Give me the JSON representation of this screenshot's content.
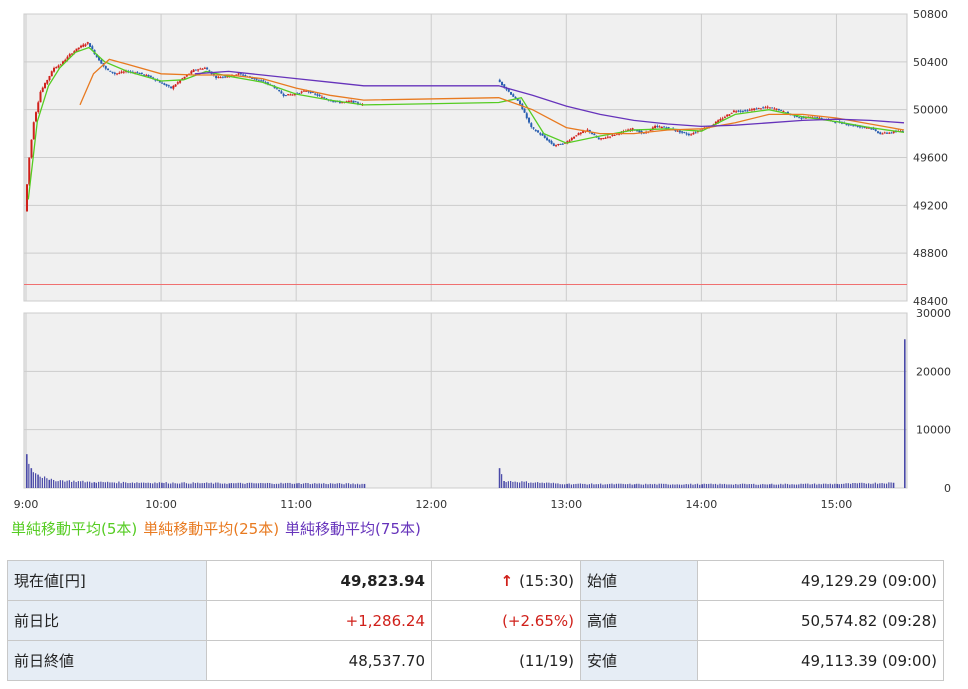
{
  "chart_data": [
    {
      "type": "candlestick",
      "panel": "price",
      "x_ticks": [
        "9:00",
        "10:00",
        "11:00",
        "12:00",
        "13:00",
        "14:00",
        "15:00"
      ],
      "y_ticks": [
        "50800",
        "50400",
        "50000",
        "49600",
        "49200",
        "48800",
        "48400"
      ],
      "ylim": [
        48400,
        50800
      ],
      "xlim": [
        "9:00",
        "15:30"
      ],
      "reference_line": 48537.7,
      "grid": true,
      "price_path": [
        [
          "9:00",
          49150
        ],
        [
          "9:02",
          49600
        ],
        [
          "9:04",
          49900
        ],
        [
          "9:07",
          50150
        ],
        [
          "9:10",
          50250
        ],
        [
          "9:13",
          50350
        ],
        [
          "9:16",
          50380
        ],
        [
          "9:20",
          50460
        ],
        [
          "9:24",
          50520
        ],
        [
          "9:28",
          50560
        ],
        [
          "9:32",
          50440
        ],
        [
          "9:36",
          50340
        ],
        [
          "9:40",
          50300
        ],
        [
          "9:45",
          50320
        ],
        [
          "9:50",
          50310
        ],
        [
          "9:55",
          50280
        ],
        [
          "10:00",
          50230
        ],
        [
          "10:05",
          50180
        ],
        [
          "10:10",
          50260
        ],
        [
          "10:15",
          50330
        ],
        [
          "10:20",
          50350
        ],
        [
          "10:25",
          50270
        ],
        [
          "10:30",
          50280
        ],
        [
          "10:35",
          50300
        ],
        [
          "10:40",
          50270
        ],
        [
          "10:45",
          50240
        ],
        [
          "10:50",
          50200
        ],
        [
          "10:55",
          50120
        ],
        [
          "11:00",
          50130
        ],
        [
          "11:05",
          50160
        ],
        [
          "11:10",
          50120
        ],
        [
          "11:15",
          50080
        ],
        [
          "11:20",
          50060
        ],
        [
          "11:25",
          50070
        ],
        [
          "11:30",
          50040
        ],
        [
          "12:30",
          50250
        ],
        [
          "12:35",
          50150
        ],
        [
          "12:40",
          50050
        ],
        [
          "12:45",
          49850
        ],
        [
          "12:50",
          49780
        ],
        [
          "12:55",
          49700
        ],
        [
          "13:00",
          49720
        ],
        [
          "13:05",
          49790
        ],
        [
          "13:10",
          49830
        ],
        [
          "13:15",
          49750
        ],
        [
          "13:20",
          49780
        ],
        [
          "13:25",
          49810
        ],
        [
          "13:30",
          49840
        ],
        [
          "13:35",
          49800
        ],
        [
          "13:40",
          49860
        ],
        [
          "13:45",
          49850
        ],
        [
          "13:50",
          49820
        ],
        [
          "13:55",
          49790
        ],
        [
          "14:00",
          49830
        ],
        [
          "14:05",
          49870
        ],
        [
          "14:10",
          49930
        ],
        [
          "14:15",
          49990
        ],
        [
          "14:20",
          49990
        ],
        [
          "14:25",
          50010
        ],
        [
          "14:30",
          50020
        ],
        [
          "14:35",
          50000
        ],
        [
          "14:40",
          49960
        ],
        [
          "14:45",
          49930
        ],
        [
          "14:50",
          49940
        ],
        [
          "14:55",
          49920
        ],
        [
          "15:00",
          49900
        ],
        [
          "15:05",
          49880
        ],
        [
          "15:10",
          49860
        ],
        [
          "15:15",
          49850
        ],
        [
          "15:20",
          49800
        ],
        [
          "15:25",
          49810
        ],
        [
          "15:30",
          49824
        ]
      ],
      "series": [
        {
          "name": "単純移動平均(5本)",
          "color": "#55cc22",
          "values": [
            [
              "9:01",
              49250
            ],
            [
              "9:05",
              49900
            ],
            [
              "9:10",
              50200
            ],
            [
              "9:15",
              50350
            ],
            [
              "9:22",
              50480
            ],
            [
              "9:28",
              50520
            ],
            [
              "9:35",
              50400
            ],
            [
              "9:45",
              50320
            ],
            [
              "10:00",
              50240
            ],
            [
              "10:10",
              50250
            ],
            [
              "10:20",
              50320
            ],
            [
              "10:30",
              50280
            ],
            [
              "10:45",
              50230
            ],
            [
              "11:00",
              50130
            ],
            [
              "11:15",
              50080
            ],
            [
              "11:30",
              50040
            ],
            [
              "12:30",
              50060
            ],
            [
              "12:40",
              50100
            ],
            [
              "12:50",
              49800
            ],
            [
              "13:00",
              49720
            ],
            [
              "13:15",
              49780
            ],
            [
              "13:30",
              49830
            ],
            [
              "13:45",
              49840
            ],
            [
              "14:00",
              49820
            ],
            [
              "14:15",
              49960
            ],
            [
              "14:30",
              50000
            ],
            [
              "14:45",
              49940
            ],
            [
              "15:00",
              49900
            ],
            [
              "15:15",
              49850
            ],
            [
              "15:30",
              49810
            ]
          ]
        },
        {
          "name": "単純移動平均(25本)",
          "color": "#e87a20",
          "values": [
            [
              "9:24",
              50040
            ],
            [
              "9:30",
              50300
            ],
            [
              "9:37",
              50420
            ],
            [
              "9:45",
              50380
            ],
            [
              "10:00",
              50300
            ],
            [
              "10:15",
              50290
            ],
            [
              "10:30",
              50290
            ],
            [
              "10:45",
              50260
            ],
            [
              "11:00",
              50180
            ],
            [
              "11:15",
              50120
            ],
            [
              "11:30",
              50080
            ],
            [
              "12:30",
              50100
            ],
            [
              "12:45",
              50000
            ],
            [
              "13:00",
              49850
            ],
            [
              "13:15",
              49800
            ],
            [
              "13:30",
              49800
            ],
            [
              "13:45",
              49830
            ],
            [
              "14:00",
              49840
            ],
            [
              "14:15",
              49890
            ],
            [
              "14:30",
              49960
            ],
            [
              "14:45",
              49960
            ],
            [
              "15:00",
              49930
            ],
            [
              "15:15",
              49880
            ],
            [
              "15:30",
              49830
            ]
          ]
        },
        {
          "name": "単純移動平均(75本)",
          "color": "#6633bb",
          "values": [
            [
              "10:15",
              50300
            ],
            [
              "10:30",
              50320
            ],
            [
              "10:45",
              50290
            ],
            [
              "11:00",
              50260
            ],
            [
              "11:15",
              50230
            ],
            [
              "11:30",
              50200
            ],
            [
              "12:30",
              50200
            ],
            [
              "12:45",
              50120
            ],
            [
              "13:00",
              50030
            ],
            [
              "13:15",
              49960
            ],
            [
              "13:30",
              49910
            ],
            [
              "13:45",
              49880
            ],
            [
              "14:00",
              49860
            ],
            [
              "14:15",
              49870
            ],
            [
              "14:30",
              49890
            ],
            [
              "14:45",
              49910
            ],
            [
              "15:00",
              49920
            ],
            [
              "15:15",
              49910
            ],
            [
              "15:30",
              49890
            ]
          ]
        }
      ]
    },
    {
      "type": "bar",
      "panel": "volume",
      "y_ticks": [
        "30000",
        "20000",
        "10000",
        "0"
      ],
      "ylim": [
        0,
        30000
      ],
      "bars": [
        [
          "9:00",
          5800
        ],
        [
          "9:02",
          3400
        ],
        [
          "9:05",
          2300
        ],
        [
          "9:10",
          1400
        ],
        [
          "9:30",
          1000
        ],
        [
          "10:00",
          900
        ],
        [
          "10:30",
          800
        ],
        [
          "11:00",
          800
        ],
        [
          "11:30",
          700
        ],
        [
          "12:30",
          3400
        ],
        [
          "12:32",
          1200
        ],
        [
          "13:00",
          700
        ],
        [
          "13:30",
          650
        ],
        [
          "14:00",
          650
        ],
        [
          "14:30",
          650
        ],
        [
          "15:00",
          700
        ],
        [
          "15:25",
          900
        ],
        [
          "15:30",
          25500
        ]
      ]
    }
  ],
  "legend": [
    {
      "label": "単純移動平均(5本)",
      "color": "#55cc22"
    },
    {
      "label": "単純移動平均(25本)",
      "color": "#e87a20"
    },
    {
      "label": "単純移動平均(75本)",
      "color": "#6633bb"
    }
  ],
  "quote": {
    "rows": [
      {
        "label": "現在値[円]",
        "value": "49,823.94",
        "arrow": "↑",
        "aux": "(15:30)",
        "label2": "始値",
        "value2": "49,129.29 (09:00)"
      },
      {
        "label": "前日比",
        "value": "+1,286.24",
        "aux": "(+2.65%)",
        "label2": "高値",
        "value2": "50,574.82 (09:28)"
      },
      {
        "label": "前日終値",
        "value": "48,537.70",
        "aux": "(11/19)",
        "label2": "安値",
        "value2": "49,113.39 (09:00)"
      }
    ]
  },
  "colors": {
    "up": "#d0201a",
    "down": "#2a5fb0",
    "grid": "#cccccc",
    "plot_bg": "#f0f0f0",
    "ref_line": "#f07070",
    "volume": "#4a4aa8"
  }
}
